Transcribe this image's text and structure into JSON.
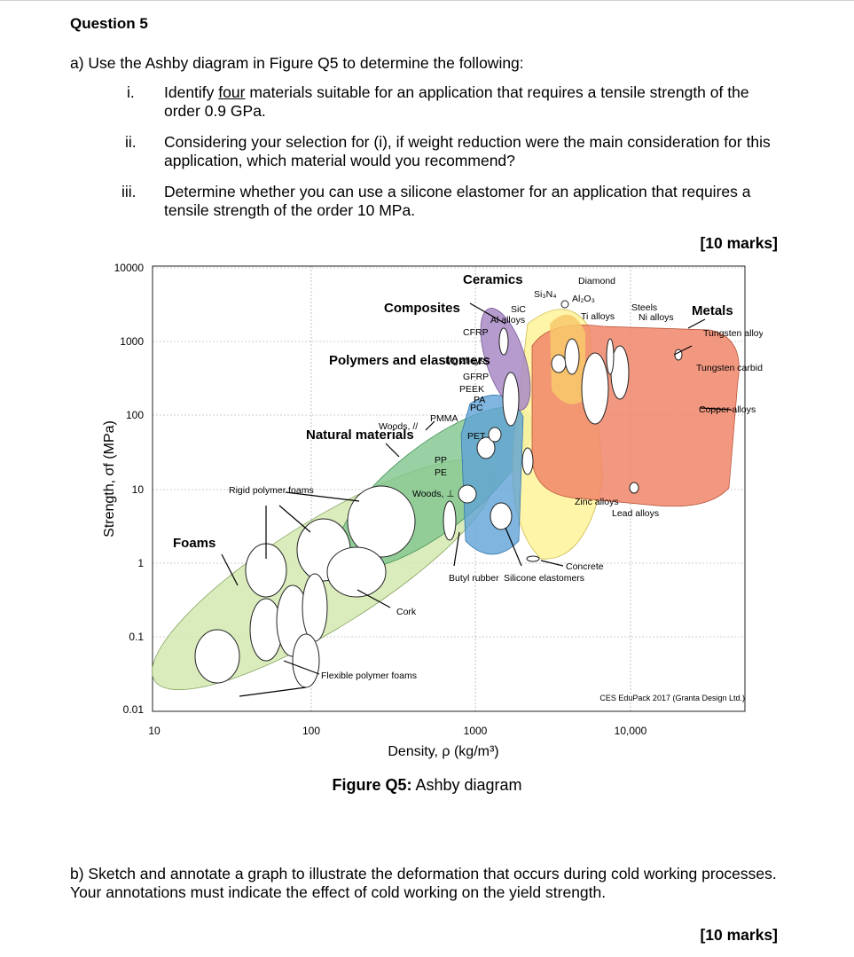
{
  "question": {
    "title": "Question 5",
    "part_a": {
      "intro": "a) Use the Ashby diagram in Figure Q5 to determine the following:",
      "items": [
        {
          "num": "i.",
          "pre": "Identify ",
          "underlined": "four",
          "post": " materials suitable for an application that requires a tensile strength of the order 0.9 GPa."
        },
        {
          "num": "ii.",
          "text": "Considering your selection for (i), if weight reduction were the main consideration for this application, which material would you recommend?"
        },
        {
          "num": "iii.",
          "text": "Determine whether you can use a silicone elastomer for an application that requires a tensile strength of the order 10 MPa."
        }
      ],
      "marks": "[10 marks]"
    },
    "figure": {
      "caption_bold": "Figure Q5:",
      "caption_rest": " Ashby diagram"
    },
    "part_b": {
      "text": "b) Sketch and annotate a graph to illustrate the deformation that occurs during cold working processes. Your annotations must indicate the effect of cold working on the yield strength.",
      "marks": "[10 marks]"
    }
  },
  "chart_data": {
    "type": "scatter",
    "xlabel": "Density, ρ  (kg/m³)",
    "ylabel": "Strength, σf  (MPa)",
    "x_log": true,
    "y_log": true,
    "xlim": [
      10,
      30000
    ],
    "ylim": [
      0.01,
      10000
    ],
    "x_ticks": [
      "10",
      "100",
      "1000",
      "10,000"
    ],
    "y_ticks": [
      "0.01",
      "0.1",
      "1",
      "10",
      "100",
      "1000",
      "10000"
    ],
    "grid": true,
    "credit": "CES EduPack 2017 (Granta Design Ltd.)",
    "families": [
      {
        "name": "Foams",
        "color": "#d4e8b0",
        "x_range": [
          12,
          1000
        ],
        "y_range": [
          0.01,
          10
        ]
      },
      {
        "name": "Natural materials",
        "color": "#7fc58e",
        "x_range": [
          100,
          1500
        ],
        "y_range": [
          0.5,
          200
        ]
      },
      {
        "name": "Polymers and elastomers",
        "color": "#5fa3d6",
        "x_range": [
          800,
          2500
        ],
        "y_range": [
          0.3,
          200
        ]
      },
      {
        "name": "Composites",
        "color": "#a98ac6",
        "x_range": [
          1500,
          2500
        ],
        "y_range": [
          100,
          1500
        ]
      },
      {
        "name": "Ceramics",
        "color": "#fff4a0",
        "x_range": [
          2200,
          6000
        ],
        "y_range": [
          1,
          5000
        ]
      },
      {
        "name": "Metals",
        "color": "#f1866a",
        "x_range": [
          2500,
          22000
        ],
        "y_range": [
          10,
          3000
        ]
      }
    ],
    "labels": [
      "Ceramics",
      "Composites",
      "Polymers and elastomers",
      "Natural materials",
      "Foams",
      "Metals",
      "Si₃N₄",
      "Diamond",
      "Al₂O₃",
      "SiC",
      "Al alloys",
      "Ti alloys",
      "Steels",
      "Ni alloys",
      "CFRP",
      "Tungsten alloys",
      "Mg alloys",
      "GFRP",
      "PEEK",
      "Tungsten carbide",
      "PA",
      "PC",
      "PMMA",
      "Woods, //",
      "PET",
      "Copper alloys",
      "PP",
      "PE",
      "Woods, ⊥",
      "Rigid polymer foams",
      "Zinc alloys",
      "Lead alloys",
      "Concrete",
      "Butyl rubber",
      "Silicone elastomers",
      "Cork",
      "Flexible polymer foams"
    ]
  }
}
